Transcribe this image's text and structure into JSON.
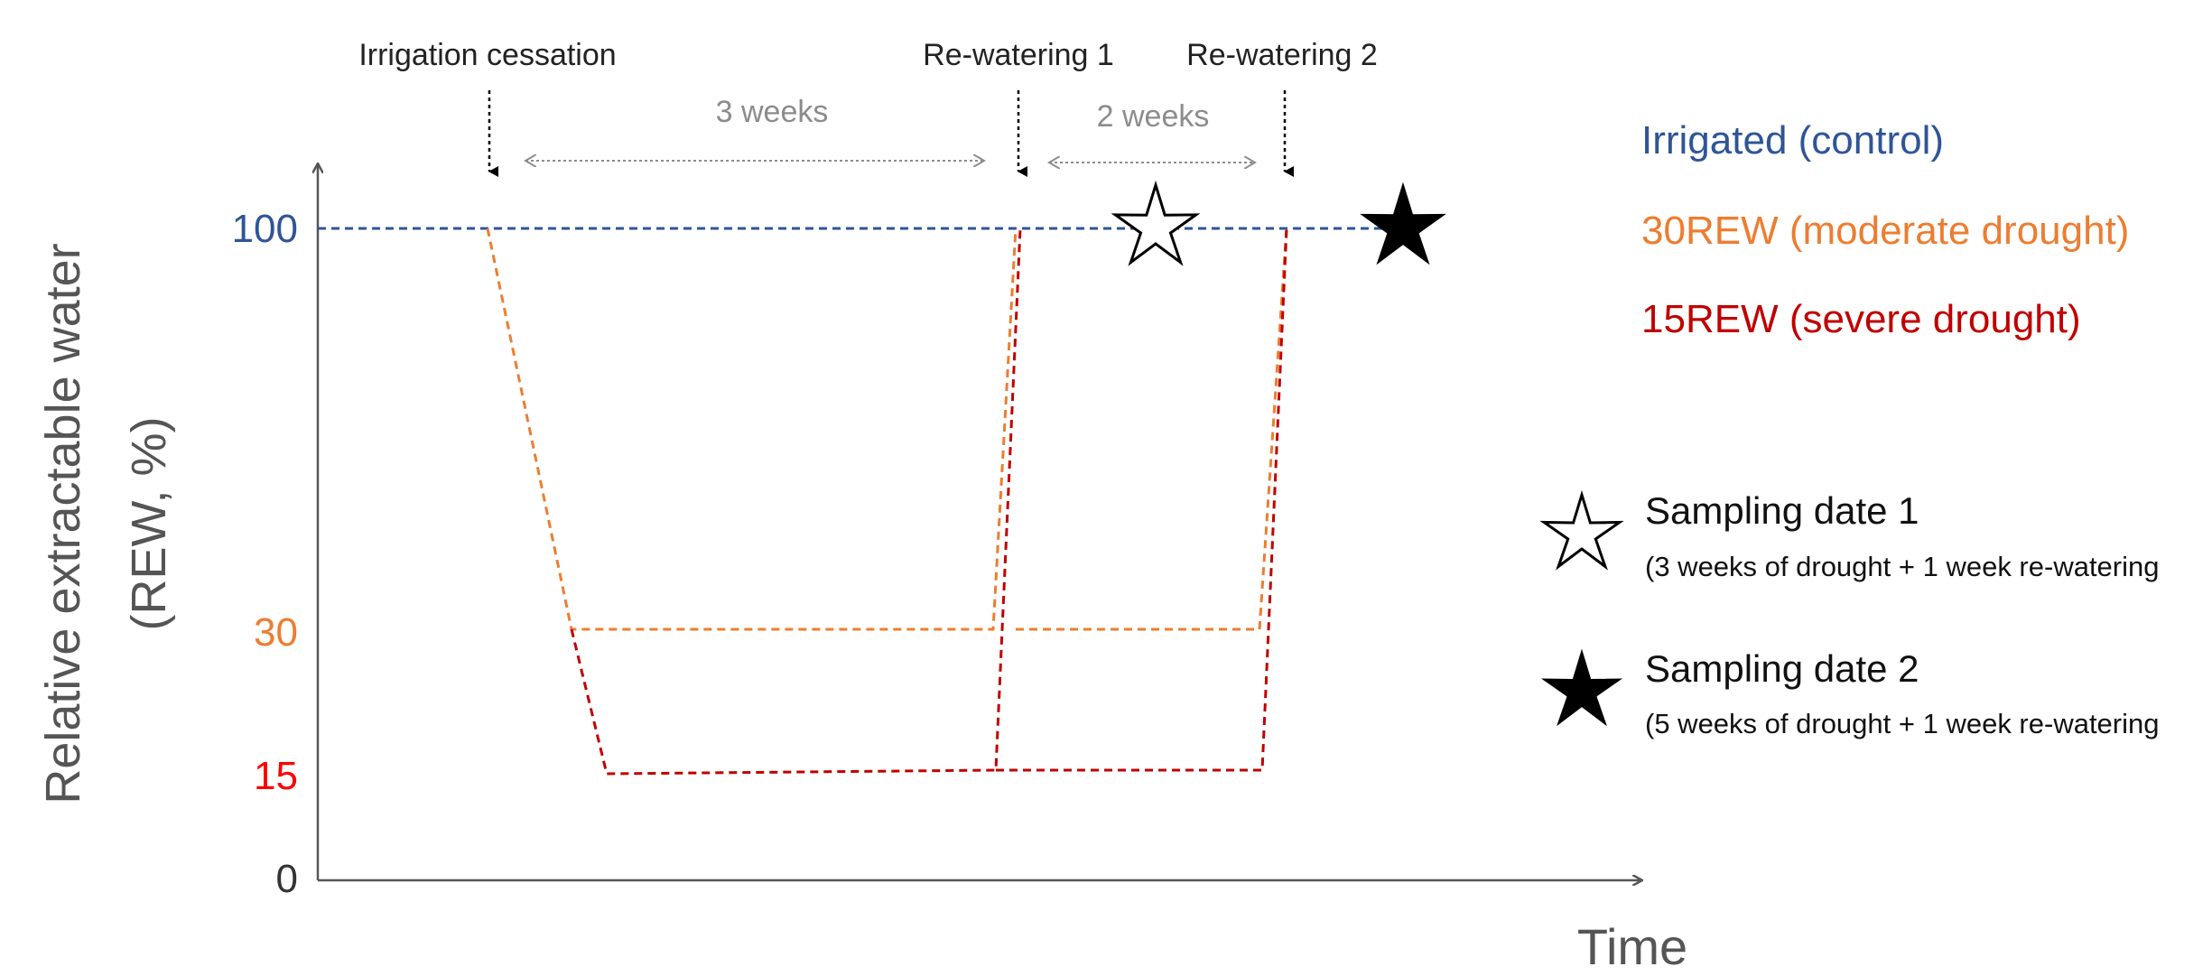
{
  "axes": {
    "y_label_line1": "Relative extractable water",
    "y_label_line2": "(REW, %)",
    "x_label": "Time",
    "y_ticks": [
      {
        "label": "100",
        "value": 100,
        "color": "#2f5597"
      },
      {
        "label": "30",
        "value": 30,
        "color": "#ed7d31"
      },
      {
        "label": "15",
        "value": 15,
        "color": "#ff0000"
      },
      {
        "label": "0",
        "value": 0,
        "color": "#333333"
      }
    ]
  },
  "events": {
    "irrigation_cessation": "Irrigation cessation",
    "rewatering_1": "Re-watering 1",
    "rewatering_2": "Re-watering 2",
    "interval_1": "3 weeks",
    "interval_2": "2 weeks"
  },
  "legend": {
    "irrigated": {
      "label": "Irrigated (control)",
      "color": "#2f5597"
    },
    "moderate": {
      "label": "30REW (moderate drought)",
      "color": "#ed7d31"
    },
    "severe": {
      "label": "15REW (severe drought)",
      "color": "#c00000"
    },
    "sampling_1": {
      "title": "Sampling date 1",
      "note": "(3 weeks of drought + 1 week re-watering"
    },
    "sampling_2": {
      "title": "Sampling date 2",
      "note": "(5 weeks of drought + 1 week re-watering"
    }
  }
}
